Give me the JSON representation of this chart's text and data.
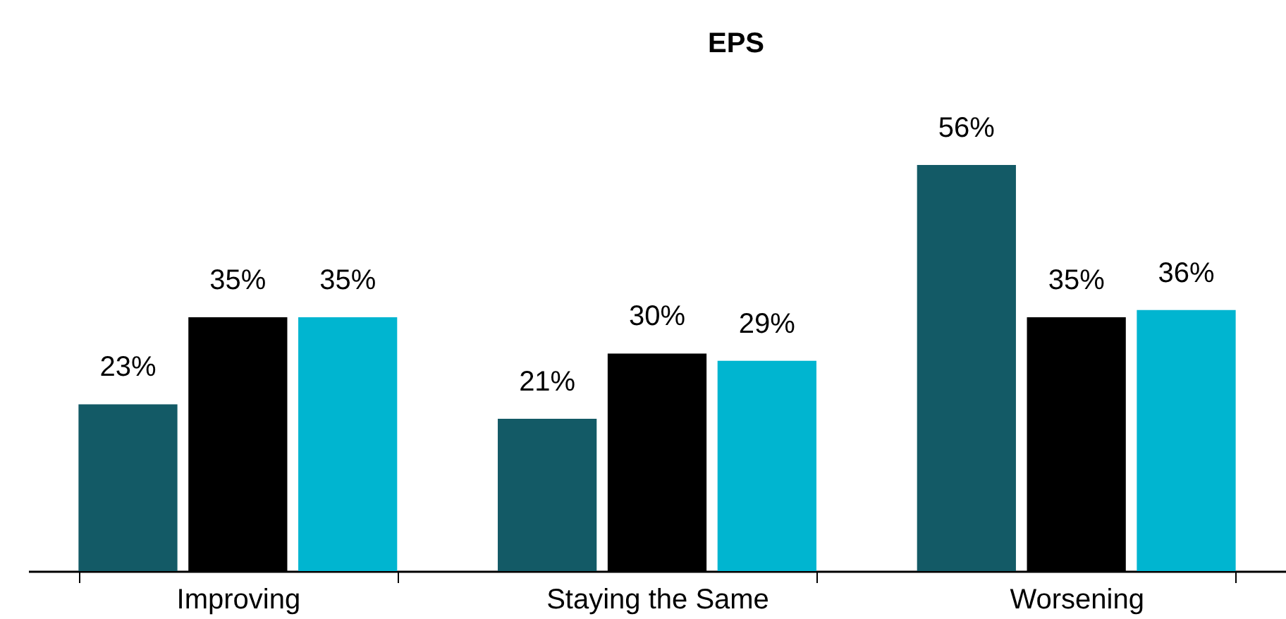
{
  "chart_data": {
    "type": "bar",
    "title": "EPS",
    "categories": [
      "Improving",
      "Staying the Same",
      "Worsening"
    ],
    "series": [
      {
        "color": "#135a66",
        "values": [
          23,
          21,
          56
        ],
        "value_labels": [
          "23%",
          "21%",
          "56%"
        ]
      },
      {
        "color": "#000000",
        "values": [
          35,
          30,
          35
        ],
        "value_labels": [
          "35%",
          "30%",
          "35%"
        ]
      },
      {
        "color": "#00b5d0",
        "values": [
          35,
          29,
          36
        ],
        "value_labels": [
          "35%",
          "29%",
          "36%"
        ]
      }
    ]
  }
}
